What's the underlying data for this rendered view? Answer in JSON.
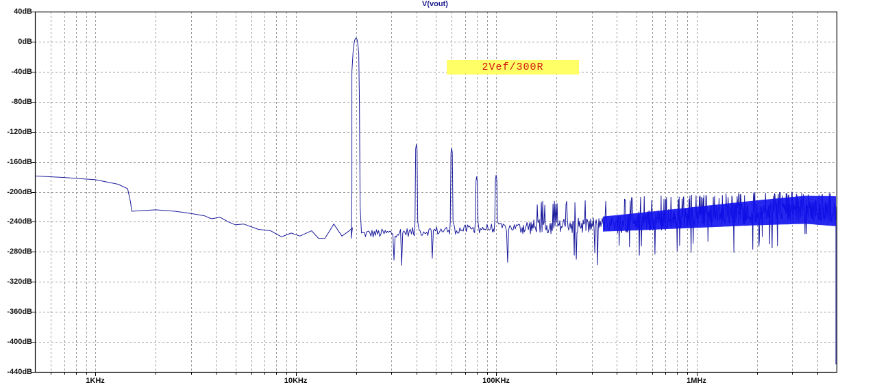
{
  "chart_data": {
    "type": "line",
    "title": "V(vout)",
    "xlabel": "",
    "ylabel": "",
    "x_scale": "log",
    "xlim_hz": [
      500,
      5000000
    ],
    "ylim": [
      -440,
      40
    ],
    "grid": true,
    "legend": "none",
    "y_ticks": [
      "40dB",
      "0dB",
      "-40dB",
      "-80dB",
      "-120dB",
      "-160dB",
      "-200dB",
      "-240dB",
      "-280dB",
      "-320dB",
      "-360dB",
      "-400dB",
      "-440dB"
    ],
    "y_tick_values": [
      40,
      0,
      -40,
      -80,
      -120,
      -160,
      -200,
      -240,
      -280,
      -320,
      -360,
      -400,
      -440
    ],
    "x_ticks": [
      "1KHz",
      "10KHz",
      "100KHz",
      "1MHz"
    ],
    "x_tick_values": [
      1000,
      10000,
      100000,
      1000000
    ],
    "annotation": "2Vef/300R",
    "series": [
      {
        "name": "V(vout)",
        "color": "#1a1a9c",
        "fundamental": {
          "freq_hz": 20000,
          "level_db": 5
        },
        "harmonics": [
          {
            "freq_hz": 40000,
            "level_db": -137
          },
          {
            "freq_hz": 60000,
            "level_db": -142
          },
          {
            "freq_hz": 80000,
            "level_db": -180
          },
          {
            "freq_hz": 100000,
            "level_db": -178
          }
        ],
        "low_freq_curve": [
          [
            500,
            -179
          ],
          [
            700,
            -181
          ],
          [
            1000,
            -184
          ],
          [
            1300,
            -190
          ],
          [
            1450,
            -196
          ],
          [
            1500,
            -214
          ],
          [
            1520,
            -226
          ],
          [
            2000,
            -224
          ],
          [
            2500,
            -226
          ],
          [
            3000,
            -229
          ],
          [
            3500,
            -232
          ],
          [
            3800,
            -236
          ],
          [
            4200,
            -234
          ],
          [
            4600,
            -240
          ],
          [
            5000,
            -244
          ],
          [
            5500,
            -243
          ],
          [
            6500,
            -250
          ],
          [
            7500,
            -252
          ],
          [
            8500,
            -260
          ],
          [
            9500,
            -255
          ],
          [
            10500,
            -259
          ],
          [
            12000,
            -252
          ],
          [
            13000,
            -262
          ],
          [
            14000,
            -262
          ],
          [
            15500,
            -243
          ],
          [
            17000,
            -259
          ],
          [
            18500,
            -252
          ],
          [
            19200,
            -248
          ]
        ],
        "noise_floor": [
          [
            22000,
            -256
          ],
          [
            30000,
            -255
          ],
          [
            50000,
            -252
          ],
          [
            100000,
            -248
          ],
          [
            200000,
            -246
          ],
          [
            300000,
            -244
          ],
          [
            500000,
            -240
          ],
          [
            1000000,
            -234
          ],
          [
            2000000,
            -228
          ],
          [
            3500000,
            -224
          ],
          [
            5000000,
            -226
          ]
        ],
        "noise_envelope_top": [
          [
            200000,
            -218
          ],
          [
            500000,
            -212
          ],
          [
            1000000,
            -210
          ],
          [
            2000000,
            -207
          ],
          [
            3500000,
            -205
          ],
          [
            5000000,
            -209
          ]
        ],
        "end_drop_db": -430
      }
    ]
  },
  "plot": {
    "title": "V(vout)",
    "annotation_label": "2Vef/300R"
  },
  "colors": {
    "trace": "#1a1a9c",
    "trace_dense": "#1010ee",
    "grid": "#9a9a9a",
    "axis": "#000000",
    "annotation_bg": "#ffff66",
    "annotation_text": "#d01010",
    "title": "#1a1a8c"
  }
}
